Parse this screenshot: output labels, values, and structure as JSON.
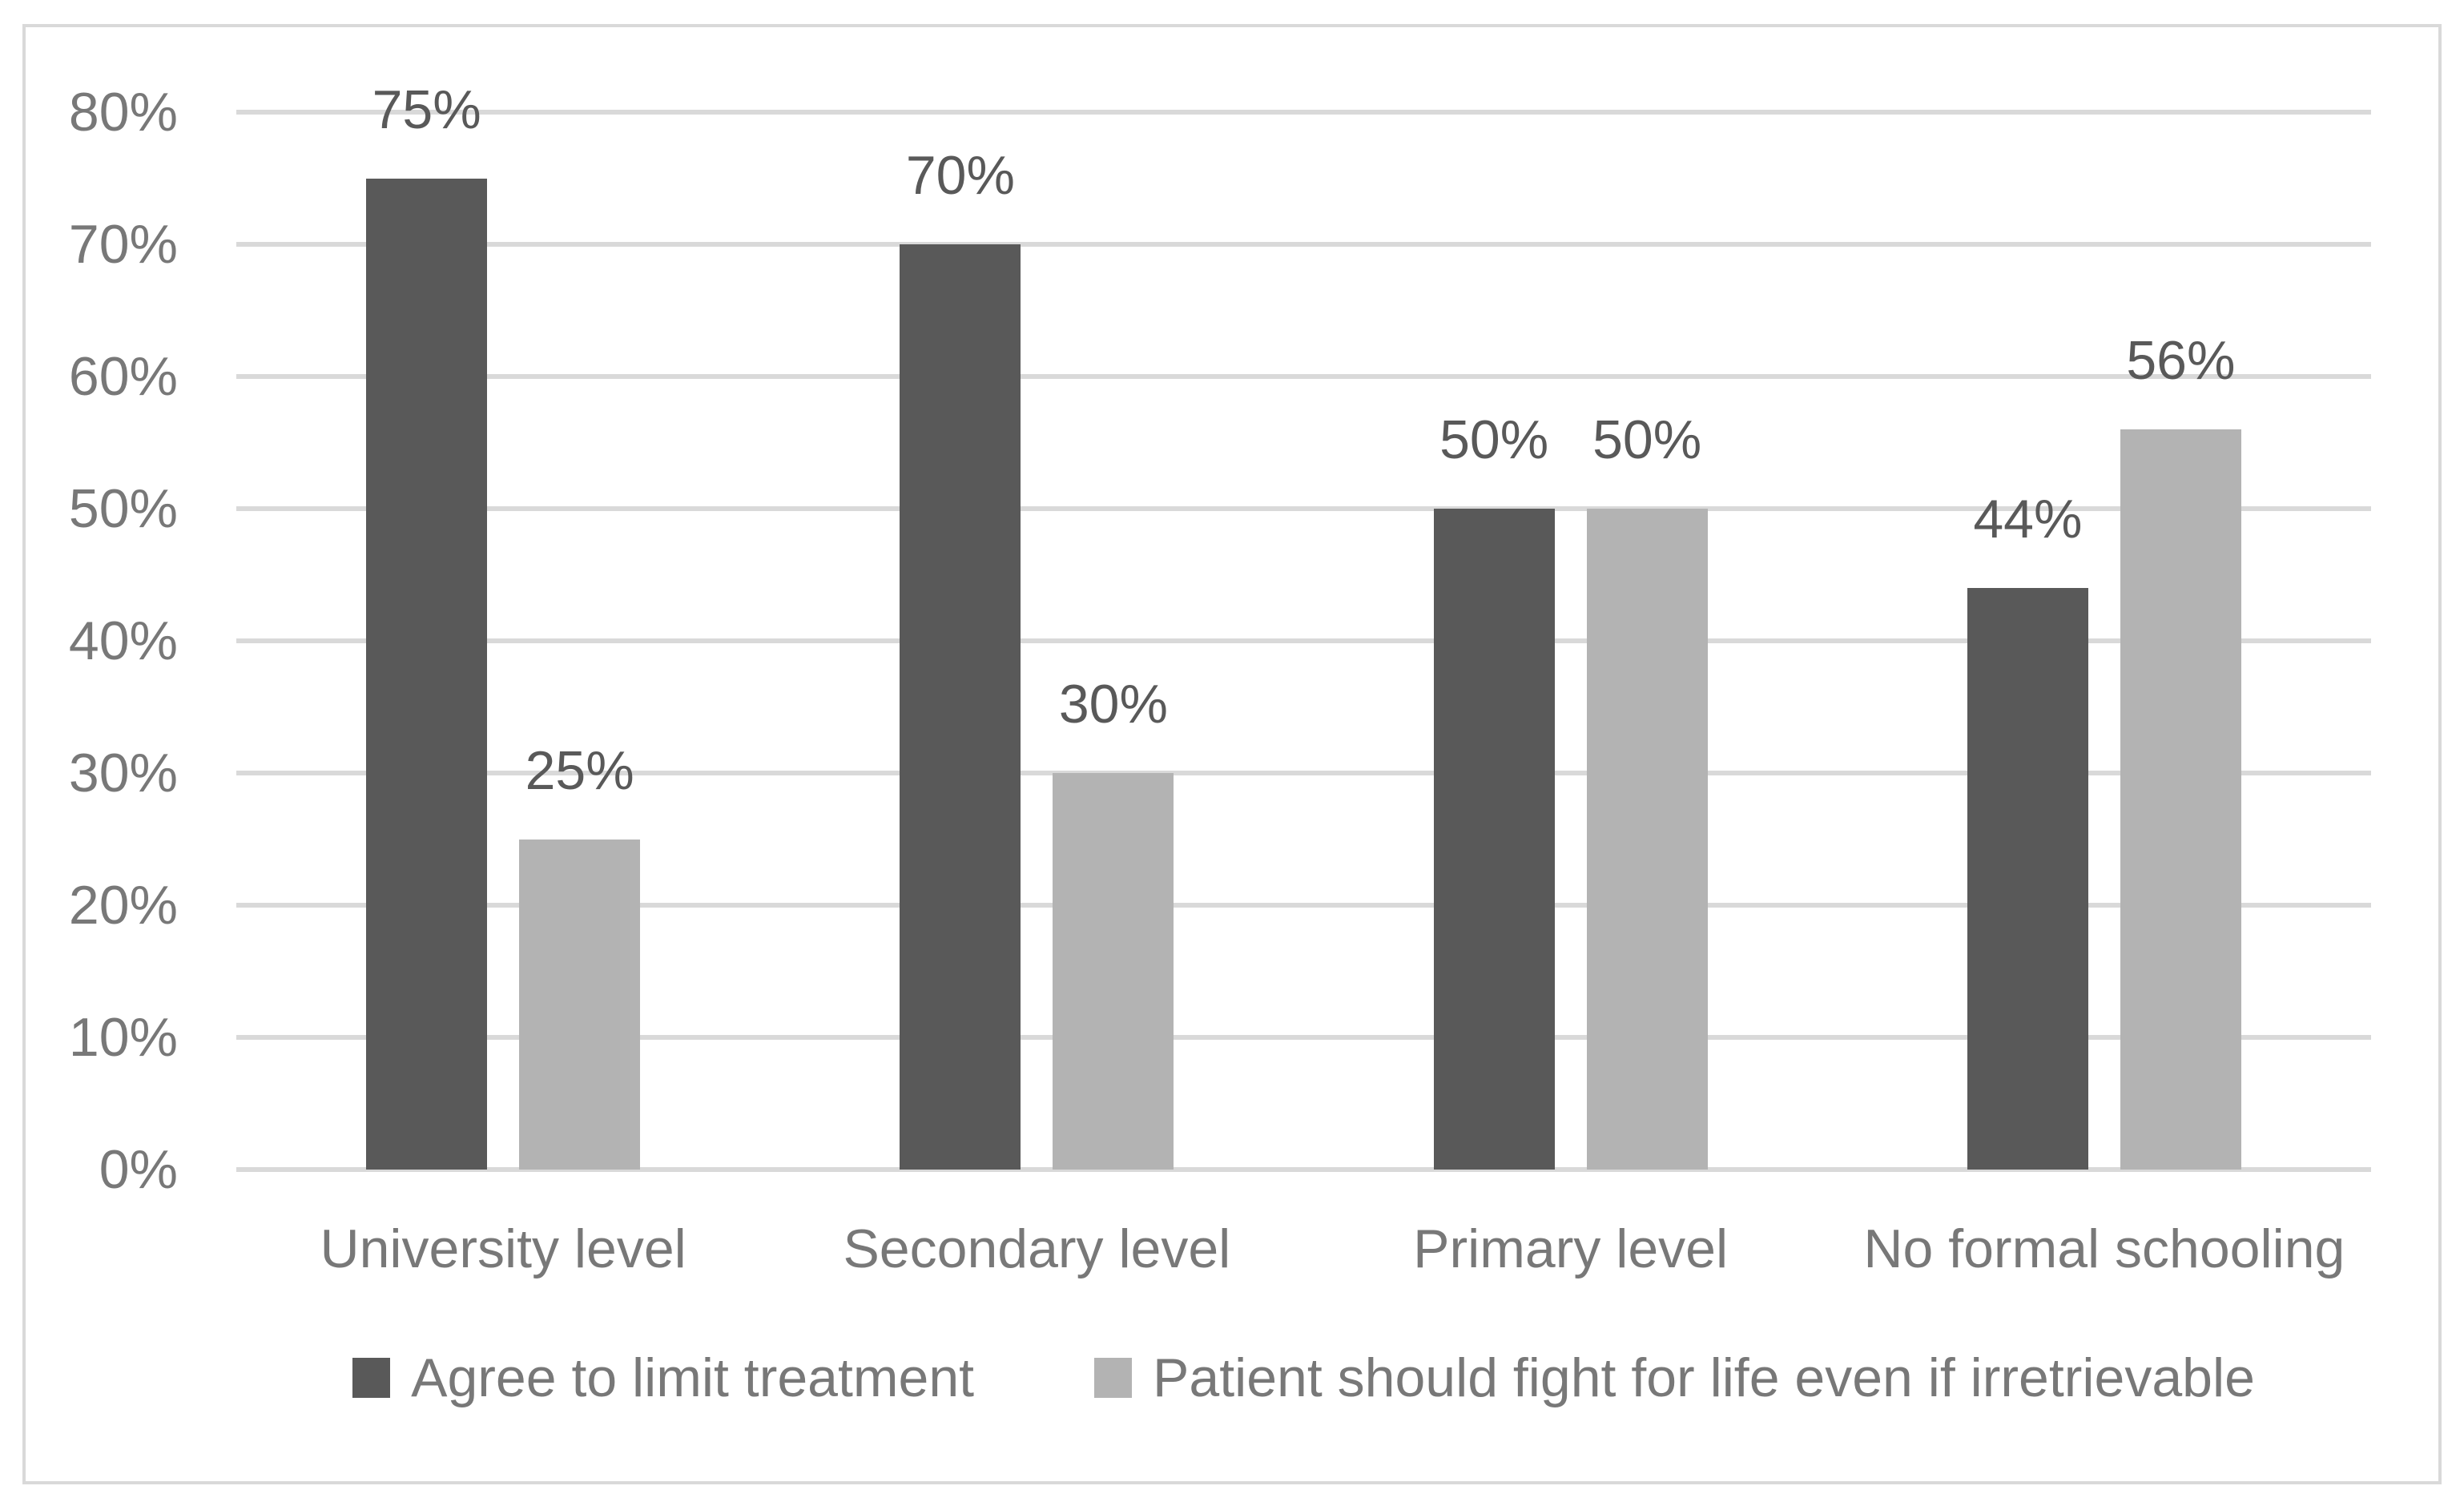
{
  "chart_data": {
    "type": "bar",
    "title": "",
    "categories": [
      "University level",
      "Secondary level",
      "Primary level",
      "No formal schooling"
    ],
    "series": [
      {
        "name": "Agree to limit treatment",
        "color": "#595959",
        "values": [
          75,
          70,
          50,
          44
        ],
        "labels": [
          "75%",
          "70%",
          "50%",
          "44%"
        ]
      },
      {
        "name": "Patient should fight for life even if irretrievable",
        "color": "#b3b3b3",
        "values": [
          25,
          30,
          50,
          56
        ],
        "labels": [
          "25%",
          "30%",
          "50%",
          "56%"
        ]
      }
    ],
    "ylim": [
      0,
      80
    ],
    "ytick_step": 10,
    "ytick_labels": [
      "0%",
      "10%",
      "20%",
      "30%",
      "40%",
      "50%",
      "60%",
      "70%",
      "80%"
    ],
    "grid": true,
    "legend_position": "bottom",
    "data_labels": true
  },
  "colors": {
    "background": "#ffffff",
    "frame_border": "#d9d9d9",
    "gridline": "#d9d9d9",
    "axis_text": "#787878",
    "data_label_text": "#595959",
    "series_dark": "#595959",
    "series_light": "#b3b3b3"
  }
}
